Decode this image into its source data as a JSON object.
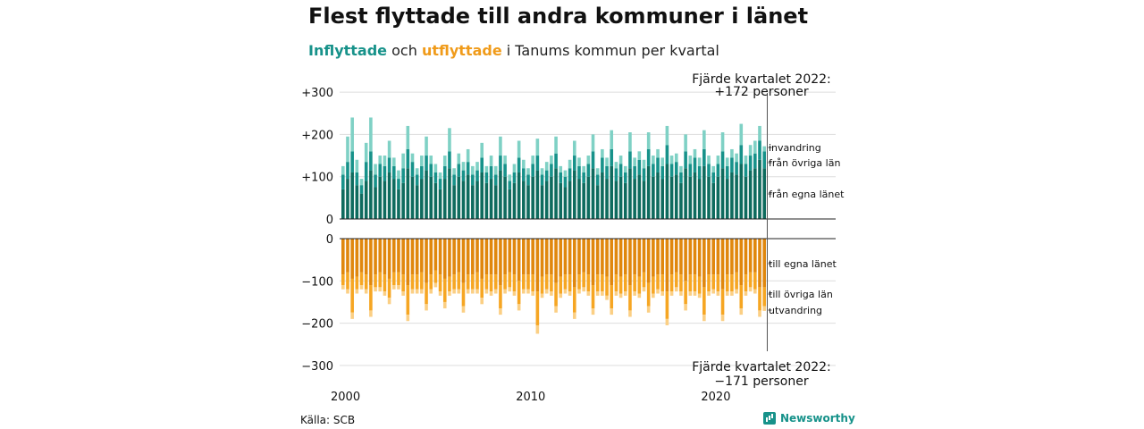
{
  "title": "Flest flyttade till andra kommuner i länet",
  "subtitle": {
    "part1": "Inflyttade",
    "part2": " och ",
    "part3": "utflyttade",
    "part4": " i Tanums kommun per kvartal"
  },
  "source": "Källa: SCB",
  "logo": "Newsworthy",
  "colors": {
    "in_own": "#0e6b5e",
    "in_other": "#17928a",
    "in_abroad": "#7fd1c5",
    "out_own": "#e0870d",
    "out_other": "#f6a623",
    "out_abroad": "#fbcf84"
  },
  "chart_data": {
    "type": "bar",
    "stacked": true,
    "title": "Flest flyttade till andra kommuner i länet",
    "subtitle": "Inflyttade och utflyttade i Tanums kommun per kvartal",
    "ylim": [
      -300,
      300
    ],
    "yticks": [
      300,
      200,
      100,
      0,
      -100,
      -200,
      -300
    ],
    "ytick_labels": [
      "+300",
      "+200",
      "+100",
      "0",
      "−100",
      "−200",
      "−300"
    ],
    "xticks": [
      "2000",
      "2010",
      "2020"
    ],
    "grid": true,
    "x_start": "2000 Q1",
    "x_end": "2022 Q4",
    "segment_labels": {
      "in_abroad": "invandring",
      "in_other": "från övriga län",
      "in_own": "från egna länet",
      "out_own": "till egna länet",
      "out_other": "till övriga län",
      "out_abroad": "utvandring"
    },
    "annotation_top": [
      "Fjärde kvartalet 2022:",
      "+172 personer"
    ],
    "annotation_bottom": [
      "Fjärde kvartalet 2022:",
      "−171 personer"
    ],
    "inflow_own": [
      70,
      95,
      110,
      80,
      60,
      90,
      115,
      75,
      100,
      90,
      110,
      95,
      70,
      85,
      120,
      100,
      80,
      95,
      115,
      100,
      85,
      70,
      95,
      120,
      80,
      100,
      90,
      105,
      80,
      90,
      110,
      85,
      95,
      80,
      115,
      100,
      70,
      85,
      110,
      90,
      80,
      100,
      115,
      80,
      90,
      100,
      120,
      85,
      75,
      90,
      115,
      95,
      85,
      100,
      120,
      80,
      110,
      95,
      125,
      90,
      100,
      85,
      120,
      95,
      105,
      90,
      125,
      100,
      110,
      95,
      130,
      100,
      105,
      85,
      120,
      100,
      110,
      95,
      125,
      100,
      85,
      100,
      120,
      95,
      110,
      105,
      130,
      100,
      115,
      120,
      140,
      120
    ],
    "inflow_other": [
      35,
      40,
      50,
      30,
      20,
      45,
      45,
      30,
      30,
      35,
      35,
      30,
      25,
      35,
      45,
      35,
      25,
      30,
      35,
      30,
      25,
      25,
      30,
      40,
      25,
      30,
      25,
      30,
      25,
      25,
      35,
      25,
      30,
      25,
      35,
      30,
      20,
      25,
      35,
      30,
      25,
      30,
      35,
      25,
      25,
      30,
      35,
      25,
      25,
      30,
      35,
      30,
      25,
      30,
      40,
      25,
      35,
      30,
      40,
      30,
      30,
      25,
      40,
      30,
      35,
      30,
      40,
      30,
      35,
      30,
      45,
      30,
      30,
      25,
      40,
      30,
      35,
      30,
      40,
      30,
      25,
      30,
      40,
      30,
      35,
      30,
      45,
      30,
      35,
      35,
      45,
      40
    ],
    "inflow_abroad": [
      20,
      60,
      80,
      30,
      15,
      45,
      80,
      25,
      20,
      25,
      40,
      20,
      20,
      35,
      55,
      20,
      15,
      25,
      45,
      20,
      20,
      15,
      25,
      55,
      15,
      25,
      20,
      30,
      20,
      20,
      35,
      15,
      25,
      20,
      45,
      20,
      15,
      20,
      40,
      20,
      15,
      20,
      40,
      15,
      20,
      20,
      40,
      15,
      15,
      20,
      35,
      20,
      15,
      20,
      40,
      15,
      20,
      20,
      45,
      15,
      20,
      15,
      45,
      20,
      20,
      20,
      40,
      20,
      20,
      20,
      45,
      20,
      20,
      15,
      40,
      20,
      20,
      20,
      45,
      20,
      15,
      20,
      45,
      20,
      20,
      20,
      50,
      20,
      25,
      30,
      35,
      12
    ],
    "outflow_own": [
      85,
      80,
      95,
      90,
      80,
      85,
      110,
      85,
      80,
      85,
      95,
      80,
      80,
      85,
      110,
      85,
      85,
      80,
      105,
      85,
      75,
      85,
      95,
      90,
      85,
      80,
      105,
      85,
      85,
      80,
      95,
      85,
      85,
      85,
      110,
      85,
      80,
      85,
      100,
      85,
      85,
      85,
      125,
      90,
      85,
      85,
      105,
      90,
      85,
      85,
      115,
      85,
      80,
      85,
      110,
      85,
      85,
      90,
      110,
      85,
      90,
      85,
      110,
      85,
      90,
      80,
      105,
      90,
      85,
      85,
      125,
      85,
      80,
      85,
      100,
      85,
      85,
      90,
      115,
      85,
      85,
      85,
      120,
      85,
      85,
      80,
      110,
      85,
      80,
      80,
      115,
      115
    ],
    "outflow_other": [
      25,
      40,
      80,
      30,
      30,
      35,
      60,
      30,
      35,
      40,
      45,
      30,
      30,
      40,
      70,
      35,
      35,
      40,
      50,
      35,
      30,
      40,
      55,
      35,
      35,
      40,
      55,
      35,
      35,
      40,
      45,
      35,
      40,
      35,
      55,
      35,
      35,
      40,
      55,
      35,
      35,
      40,
      80,
      40,
      35,
      40,
      55,
      40,
      35,
      40,
      60,
      35,
      35,
      40,
      55,
      40,
      40,
      45,
      55,
      40,
      40,
      40,
      60,
      40,
      40,
      35,
      55,
      40,
      35,
      40,
      65,
      40,
      35,
      40,
      55,
      40,
      40,
      40,
      65,
      40,
      35,
      40,
      60,
      40,
      40,
      40,
      55,
      40,
      35,
      40,
      55,
      45
    ],
    "outflow_abroad": [
      10,
      10,
      15,
      10,
      10,
      10,
      15,
      10,
      10,
      10,
      15,
      10,
      10,
      10,
      15,
      10,
      10,
      10,
      15,
      10,
      10,
      10,
      15,
      10,
      10,
      10,
      15,
      10,
      10,
      10,
      15,
      10,
      10,
      10,
      15,
      10,
      10,
      10,
      15,
      10,
      10,
      10,
      20,
      10,
      10,
      10,
      15,
      10,
      10,
      10,
      15,
      10,
      10,
      10,
      15,
      10,
      10,
      10,
      15,
      10,
      10,
      10,
      15,
      10,
      10,
      10,
      15,
      10,
      10,
      10,
      15,
      10,
      10,
      10,
      15,
      10,
      10,
      10,
      15,
      10,
      10,
      10,
      15,
      10,
      10,
      10,
      15,
      10,
      10,
      10,
      15,
      11
    ]
  }
}
